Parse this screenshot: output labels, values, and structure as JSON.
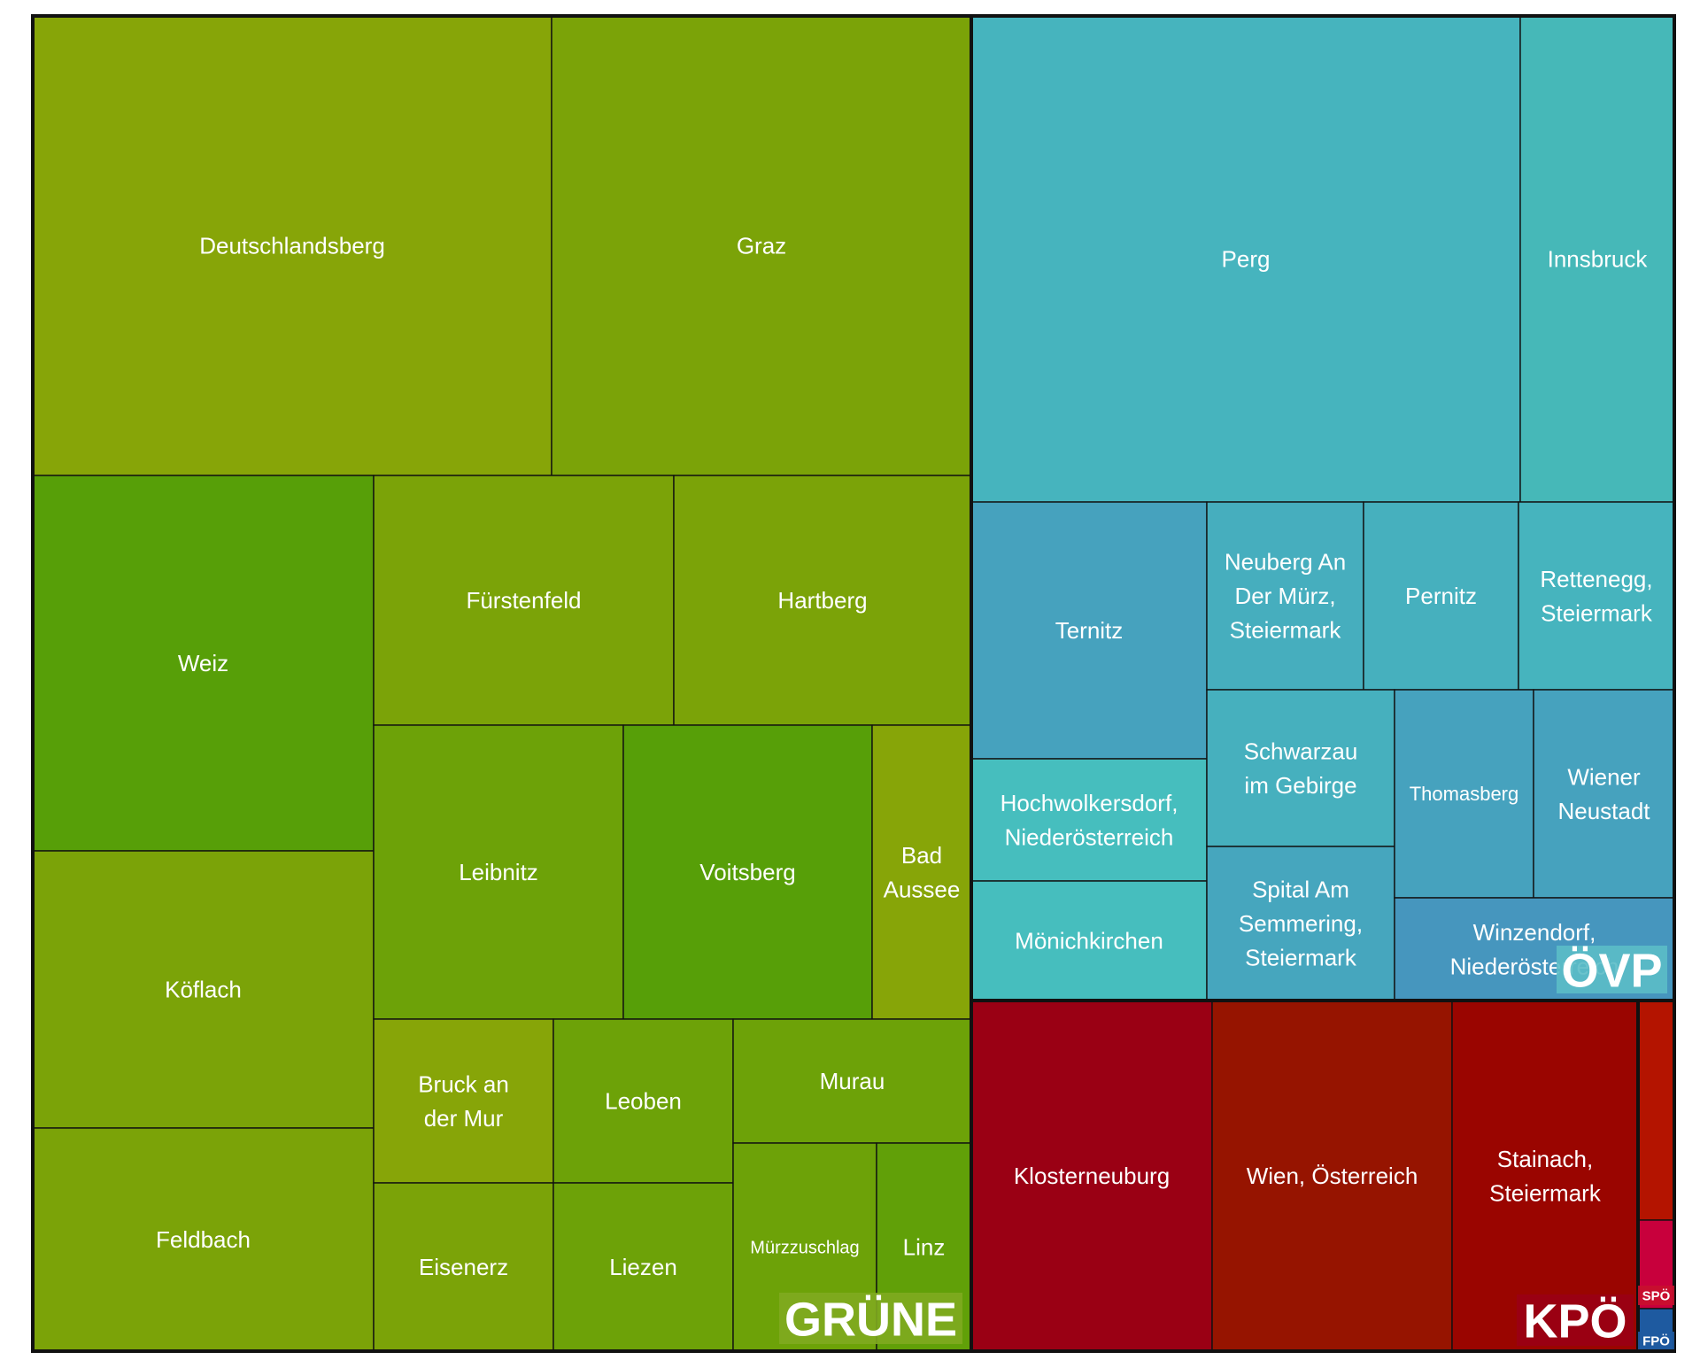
{
  "chart_data": {
    "type": "treemap",
    "title": "",
    "groups": [
      {
        "name": "GRÜNE",
        "color": "#6FA314",
        "label_bg": "#7FAA20",
        "items": [
          {
            "name": "Deutschlandsberg",
            "value": 9.3,
            "color": "#87A508"
          },
          {
            "name": "Graz",
            "value": 7.5,
            "color": "#7BA308"
          },
          {
            "name": "Weiz",
            "value": 4.97,
            "color": "#579F08"
          },
          {
            "name": "Köflach",
            "value": 3.67,
            "color": "#7BA308"
          },
          {
            "name": "Feldbach",
            "value": 3.27,
            "color": "#7BA308"
          },
          {
            "name": "Fürstenfeld",
            "value": 2.88,
            "color": "#7BA308"
          },
          {
            "name": "Hartberg",
            "value": 2.86,
            "color": "#7BA308"
          },
          {
            "name": "Leibnitz",
            "value": 2.86,
            "color": "#6DA208"
          },
          {
            "name": "Voitsberg",
            "value": 2.85,
            "color": "#579F08"
          },
          {
            "name": "Bad Aussee",
            "value": 1.14,
            "color": "#87A508"
          },
          {
            "name": "Bruck an der Mur",
            "value": 1.15,
            "color": "#87A508"
          },
          {
            "name": "Eisenerz",
            "value": 1.15,
            "color": "#7BA308"
          },
          {
            "name": "Leoben",
            "value": 1.15,
            "color": "#6DA208"
          },
          {
            "name": "Liezen",
            "value": 1.15,
            "color": "#6DA208"
          },
          {
            "name": "Murau",
            "value": 1.15,
            "color": "#6DA208"
          },
          {
            "name": "Mürzzuschlag",
            "value": 0.9,
            "color": "#6DA208"
          },
          {
            "name": "Linz",
            "value": 0.6,
            "color": "#61A008"
          }
        ]
      },
      {
        "name": "ÖVP",
        "color": "#46B4BE",
        "label_bg": "#5BBCC6",
        "items": [
          {
            "name": "Perg",
            "value": 8.4,
            "color": "#46B4BE"
          },
          {
            "name": "Innsbruck",
            "value": 2.3,
            "color": "#46B8B8"
          },
          {
            "name": "Ternitz",
            "value": 1.93,
            "color": "#46A2BE"
          },
          {
            "name": "Neuberg An Der Mürz, Steiermark",
            "value": 1.43,
            "color": "#46AEBE"
          },
          {
            "name": "Pernitz",
            "value": 1.4,
            "color": "#46B0BE"
          },
          {
            "name": "Rettenegg, Steiermark",
            "value": 1.42,
            "color": "#46B4BE"
          },
          {
            "name": "Hochwolkersdorf, Niederösterreich",
            "value": 0.94,
            "color": "#46BEBE"
          },
          {
            "name": "Mönichkirchen",
            "value": 0.95,
            "color": "#46BEBE"
          },
          {
            "name": "Schwarzau im Gebirge",
            "value": 1.13,
            "color": "#46B0BE"
          },
          {
            "name": "Spital Am Semmering, Steiermark",
            "value": 1.14,
            "color": "#46A6BE"
          },
          {
            "name": "Thomasberg",
            "value": 1.01,
            "color": "#46A2BE"
          },
          {
            "name": "Wiener Neustadt",
            "value": 1.0,
            "color": "#46A2BE"
          },
          {
            "name": "Winzendorf, Niederösterreich",
            "value": 0.96,
            "color": "#4696BE"
          }
        ]
      },
      {
        "name": "KPÖ",
        "color": "#9A0014",
        "label_bg": "#9A0014",
        "items": [
          {
            "name": "Klosterneuburg",
            "value": 2.5,
            "color": "#9A0014"
          },
          {
            "name": "Wien, Österreich",
            "value": 2.5,
            "color": "#961400"
          },
          {
            "name": "Stainach, Steiermark",
            "value": 1.97,
            "color": "#9A0500"
          }
        ]
      },
      {
        "name": "SPÖ",
        "color": "#C8102E",
        "label_bg": "#C8102E",
        "items": [
          {
            "name": "",
            "value": 0.23,
            "color": "#B41400"
          },
          {
            "name": "",
            "value": 0.07,
            "color": "#C8003C"
          }
        ]
      },
      {
        "name": "FPÖ",
        "color": "#1E5AA0",
        "label_bg": "#1E5AA0",
        "items": [
          {
            "name": "",
            "value": 0.04,
            "color": "#1E5AA0"
          }
        ]
      }
    ]
  }
}
